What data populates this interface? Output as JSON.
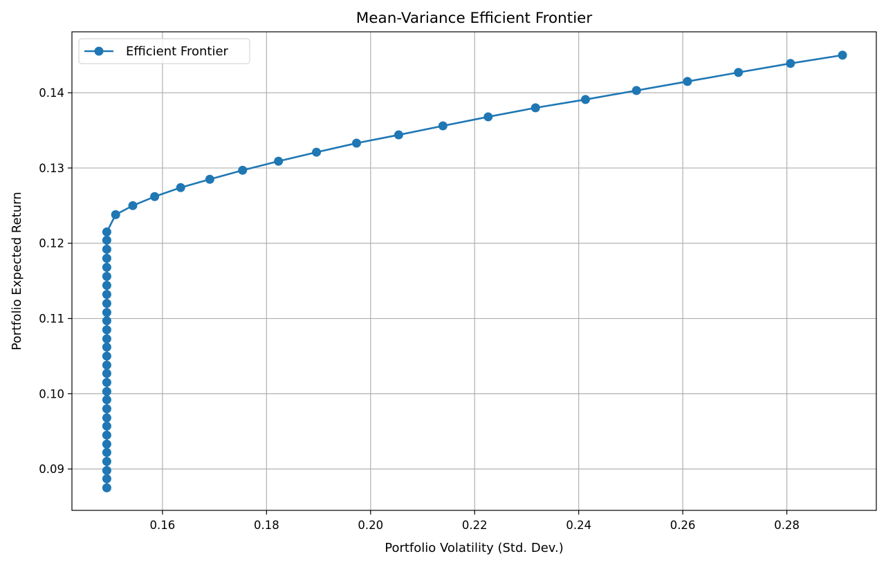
{
  "chart_data": {
    "type": "line",
    "title": "Mean-Variance Efficient Frontier",
    "xlabel": "Portfolio Volatility (Std. Dev.)",
    "ylabel": "Portfolio Expected Return",
    "xlim": [
      0.1426,
      0.2972
    ],
    "ylim": [
      0.0845,
      0.1481
    ],
    "xticks": [
      0.16,
      0.18,
      0.2,
      0.22,
      0.24,
      0.26,
      0.28
    ],
    "xtick_labels": [
      "0.16",
      "0.18",
      "0.20",
      "0.22",
      "0.24",
      "0.26",
      "0.28"
    ],
    "yticks": [
      0.09,
      0.1,
      0.11,
      0.12,
      0.13,
      0.14
    ],
    "ytick_labels": [
      "0.09",
      "0.10",
      "0.11",
      "0.12",
      "0.13",
      "0.14"
    ],
    "grid": true,
    "legend_position": "top-left",
    "colors": {
      "series": "#1f77b4",
      "grid": "#b0b0b0",
      "axes": "#000000"
    },
    "series": [
      {
        "name": "Efficient Frontier",
        "marker": "circle",
        "x": [
          0.1493,
          0.1493,
          0.1493,
          0.1493,
          0.1493,
          0.1493,
          0.1493,
          0.1493,
          0.1493,
          0.1493,
          0.1493,
          0.1493,
          0.1493,
          0.1493,
          0.1493,
          0.1493,
          0.1493,
          0.1493,
          0.1493,
          0.1493,
          0.1493,
          0.1493,
          0.1493,
          0.1493,
          0.1493,
          0.1493,
          0.1493,
          0.1493,
          0.1493,
          0.1493,
          0.151,
          0.1543,
          0.1585,
          0.1635,
          0.1691,
          0.1754,
          0.1823,
          0.1896,
          0.1973,
          0.2054,
          0.2139,
          0.2226,
          0.2317,
          0.2413,
          0.2511,
          0.2609,
          0.2707,
          0.2807,
          0.2907
        ],
        "y": [
          0.0875,
          0.0887,
          0.0898,
          0.091,
          0.0922,
          0.0933,
          0.0945,
          0.0957,
          0.0968,
          0.098,
          0.0992,
          0.1003,
          0.1015,
          0.1027,
          0.1038,
          0.105,
          0.1062,
          0.1073,
          0.1085,
          0.1097,
          0.1108,
          0.112,
          0.1132,
          0.1144,
          0.1156,
          0.1168,
          0.118,
          0.1192,
          0.1204,
          0.1215,
          0.1238,
          0.125,
          0.1262,
          0.1274,
          0.1285,
          0.1297,
          0.1309,
          0.1321,
          0.1333,
          0.1344,
          0.1356,
          0.1368,
          0.138,
          0.1391,
          0.1403,
          0.1415,
          0.1427,
          0.1439,
          0.145
        ]
      }
    ]
  }
}
